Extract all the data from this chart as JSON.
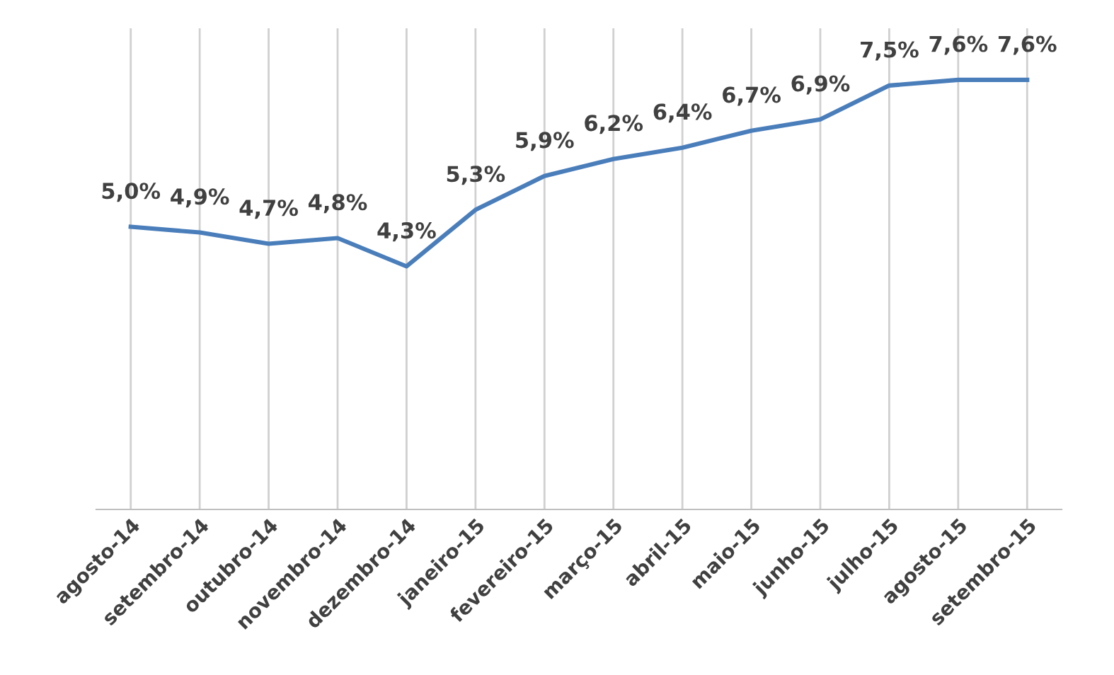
{
  "chart_data": {
    "type": "line",
    "categories": [
      "agosto-14",
      "setembro-14",
      "outubro-14",
      "novembro-14",
      "dezembro-14",
      "janeiro-15",
      "fevereiro-15",
      "março-15",
      "abril-15",
      "maio-15",
      "junho-15",
      "julho-15",
      "agosto-15",
      "setembro-15"
    ],
    "series": [
      {
        "color": "#4a7ebb",
        "values": [
          5.0,
          4.9,
          4.7,
          4.8,
          4.3,
          5.3,
          5.9,
          6.2,
          6.4,
          6.7,
          6.9,
          7.5,
          7.6,
          7.6
        ],
        "value_labels": [
          "5,0%",
          "4,9%",
          "4,7%",
          "4,8%",
          "4,3%",
          "5,3%",
          "5,9%",
          "6,2%",
          "6,4%",
          "6,7%",
          "6,9%",
          "7,5%",
          "7,6%",
          "7,6%"
        ]
      }
    ],
    "grid": "x",
    "marker": "none",
    "line_style": "solid"
  }
}
